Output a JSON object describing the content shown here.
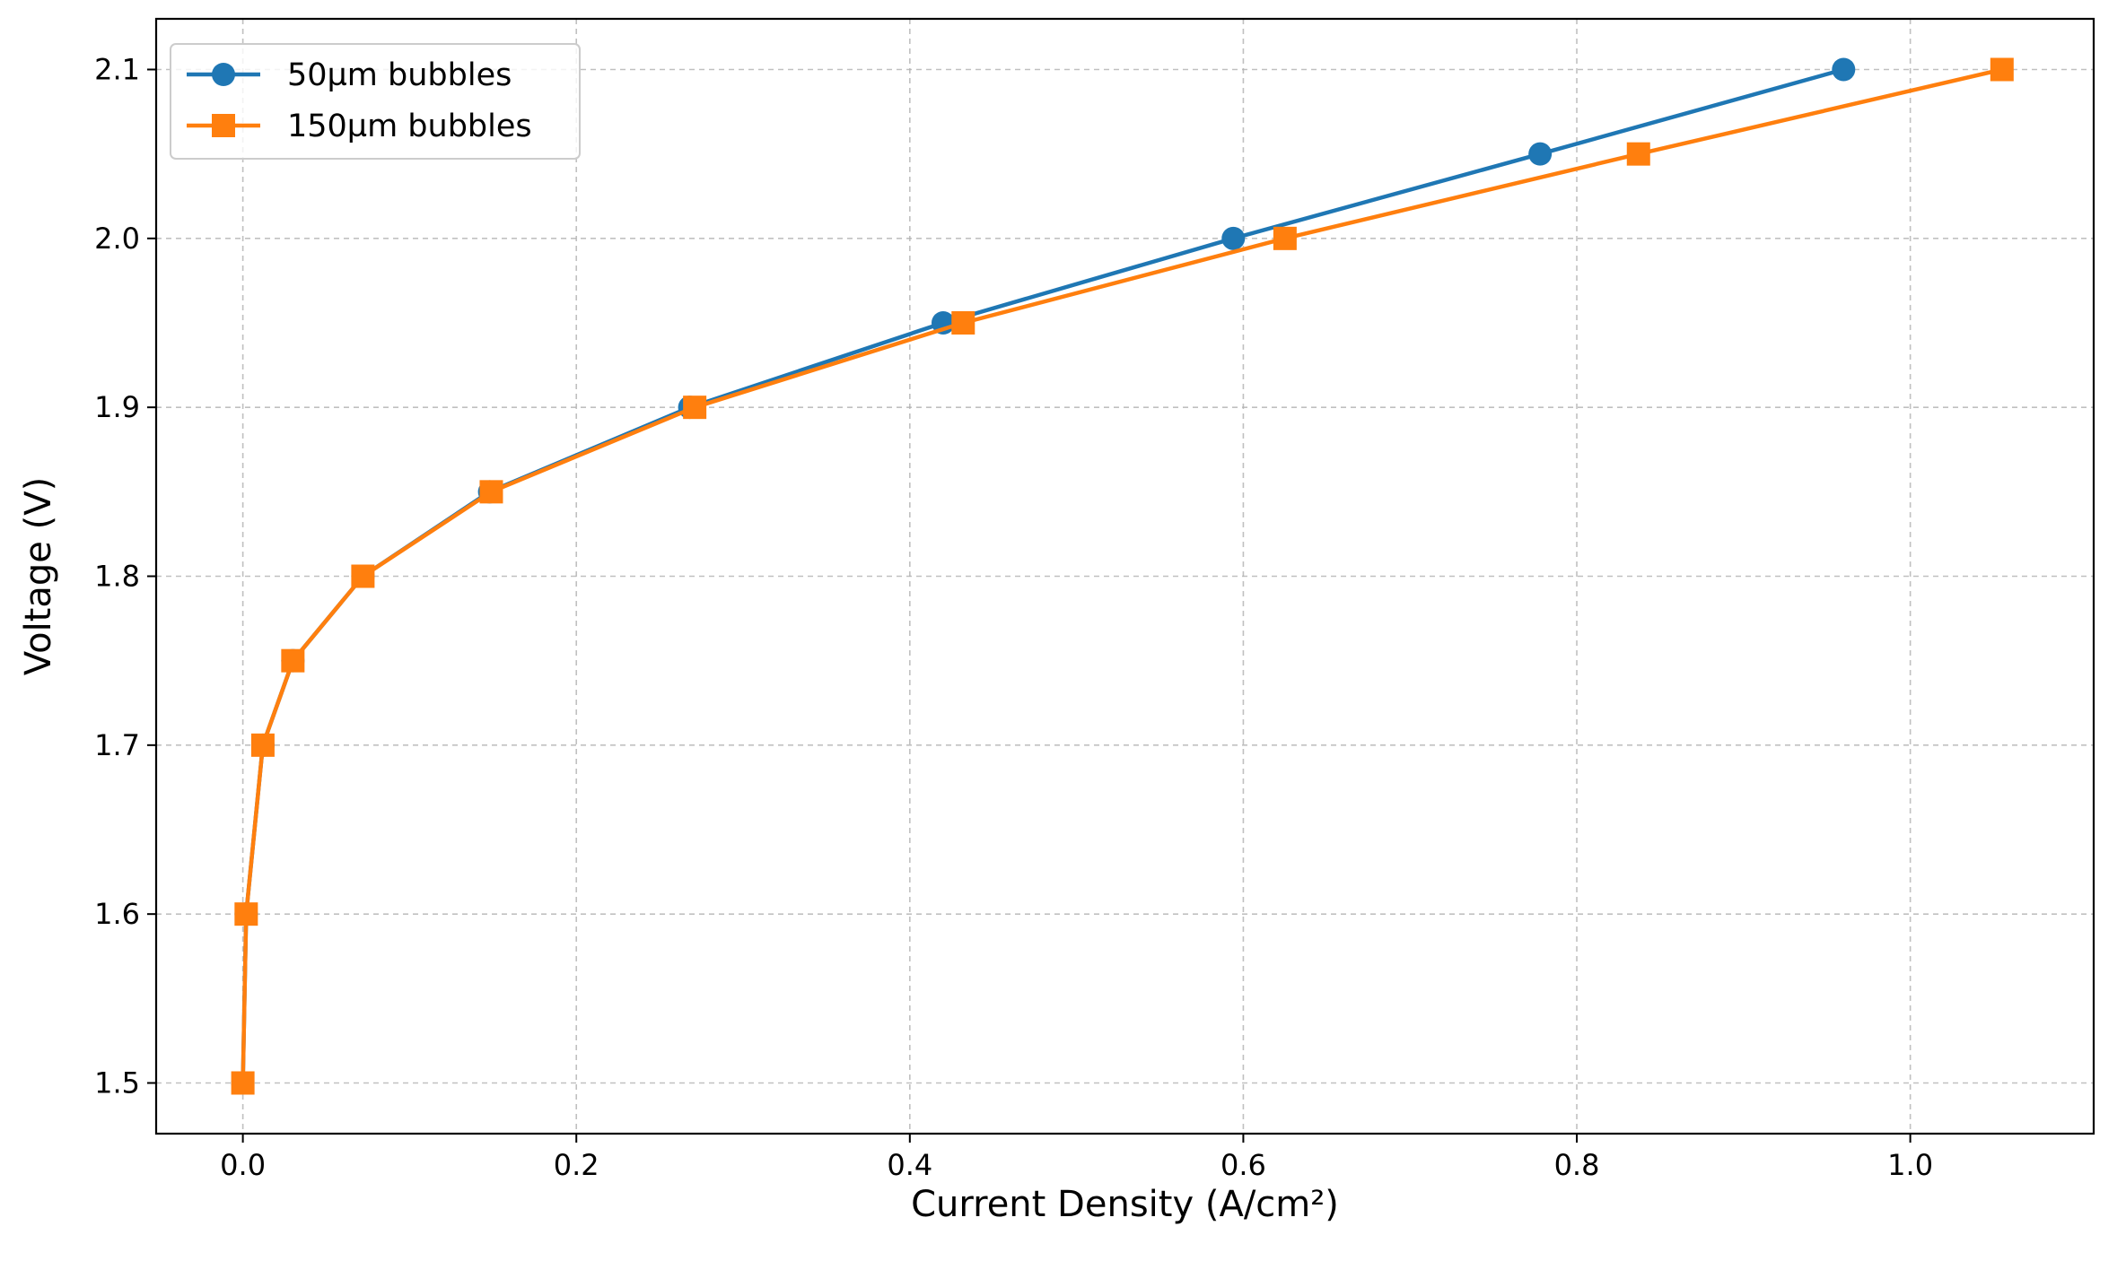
{
  "chart_data": {
    "type": "line",
    "title": "",
    "xlabel": "Current Density (A/cm²)",
    "ylabel": "Voltage (V)",
    "xlim": [
      -0.052,
      1.11
    ],
    "ylim": [
      1.47,
      2.13
    ],
    "grid": true,
    "legend_position": "top-left",
    "x_ticks": [
      0.0,
      0.2,
      0.4,
      0.6,
      0.8,
      1.0
    ],
    "x_tick_labels": [
      "0.0",
      "0.2",
      "0.4",
      "0.6",
      "0.8",
      "1.0"
    ],
    "y_ticks": [
      1.5,
      1.6,
      1.7,
      1.8,
      1.9,
      2.0,
      2.1
    ],
    "y_tick_labels": [
      "1.5",
      "1.6",
      "1.7",
      "1.8",
      "1.9",
      "2.0",
      "2.1"
    ],
    "series": [
      {
        "name": "50µm bubbles",
        "color": "#1f77b4",
        "marker": "circle",
        "x": [
          0.0,
          0.002,
          0.012,
          0.03,
          0.072,
          0.148,
          0.268,
          0.42,
          0.594,
          0.778,
          0.96
        ],
        "y": [
          1.5,
          1.6,
          1.7,
          1.75,
          1.8,
          1.85,
          1.9,
          1.95,
          2.0,
          2.05,
          2.1
        ]
      },
      {
        "name": "150µm bubbles",
        "color": "#ff7f0e",
        "marker": "square",
        "x": [
          0.0,
          0.002,
          0.012,
          0.03,
          0.072,
          0.149,
          0.271,
          0.432,
          0.625,
          0.837,
          1.055
        ],
        "y": [
          1.5,
          1.6,
          1.7,
          1.75,
          1.8,
          1.85,
          1.9,
          1.95,
          2.0,
          2.05,
          2.1
        ]
      }
    ]
  }
}
